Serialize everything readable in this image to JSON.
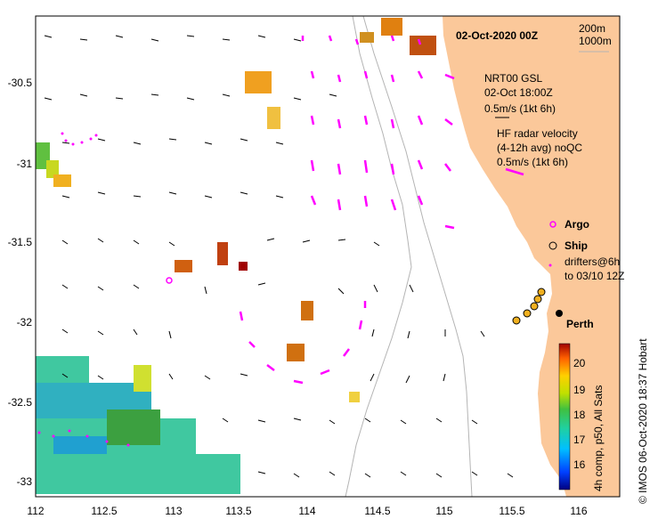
{
  "title": "02-Oct-2020 00Z",
  "depth_contours": [
    "200m",
    "1000m"
  ],
  "model_info": {
    "line1": "NRT00 GSL",
    "line2": "02-Oct 18:00Z",
    "scale": "0.5m/s (1kt 6h)"
  },
  "hf_radar": {
    "line1": "HF radar velocity",
    "line2": "(4-12h avg) noQC",
    "scale": "0.5m/s (1kt 6h)"
  },
  "legend": {
    "argo": "Argo",
    "ship": "Ship",
    "drifters_line1": "drifters@6h",
    "drifters_line2": "to 03/10 12Z"
  },
  "city": "Perth",
  "colorbar": {
    "ticks": [
      "20",
      "19",
      "18",
      "17",
      "16"
    ],
    "caption": "4h comp, p50, All Sats"
  },
  "credit": "© IMOS 06-Oct-2020 18:37 Hobart",
  "x_axis": [
    "112",
    "112.5",
    "113",
    "113.5",
    "114",
    "114.5",
    "115",
    "115.5",
    "116"
  ],
  "y_axis": [
    "-30.5",
    "-31",
    "-31.5",
    "-32",
    "-32.5",
    "-33"
  ],
  "colors": {
    "land": "#fbc89a",
    "hf_vectors": "#ff00ff",
    "model_vectors": "#000000",
    "contours": "#b4b4b4"
  }
}
